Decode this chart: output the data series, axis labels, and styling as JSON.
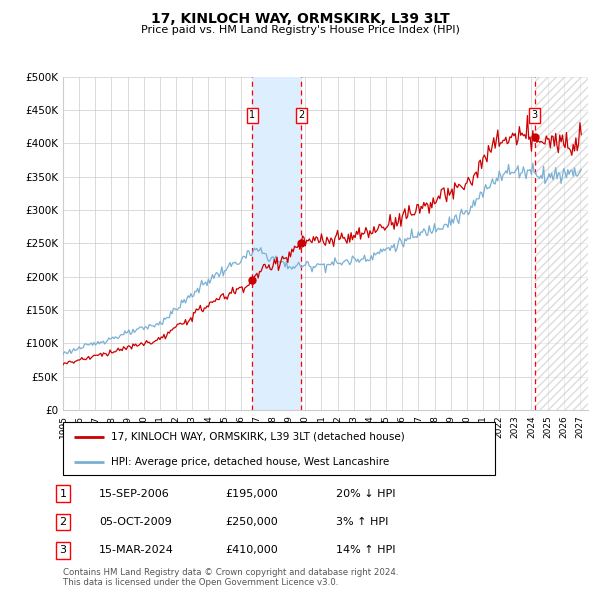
{
  "title": "17, KINLOCH WAY, ORMSKIRK, L39 3LT",
  "subtitle": "Price paid vs. HM Land Registry's House Price Index (HPI)",
  "ylabel_ticks": [
    "£0",
    "£50K",
    "£100K",
    "£150K",
    "£200K",
    "£250K",
    "£300K",
    "£350K",
    "£400K",
    "£450K",
    "£500K"
  ],
  "ytick_values": [
    0,
    50000,
    100000,
    150000,
    200000,
    250000,
    300000,
    350000,
    400000,
    450000,
    500000
  ],
  "xlim_start": 1995.0,
  "xlim_end": 2027.5,
  "ylim": [
    0,
    500000
  ],
  "transactions": [
    {
      "year": 2006.71,
      "price": 195000,
      "label": "1"
    },
    {
      "year": 2009.76,
      "price": 250000,
      "label": "2"
    },
    {
      "year": 2024.21,
      "price": 410000,
      "label": "3"
    }
  ],
  "transaction_dates": [
    "15-SEP-2006",
    "05-OCT-2009",
    "15-MAR-2024"
  ],
  "transaction_prices": [
    "£195,000",
    "£250,000",
    "£410,000"
  ],
  "transaction_hpi": [
    "20% ↓ HPI",
    "3% ↑ HPI",
    "14% ↑ HPI"
  ],
  "legend_line1": "17, KINLOCH WAY, ORMSKIRK, L39 3LT (detached house)",
  "legend_line2": "HPI: Average price, detached house, West Lancashire",
  "footer": "Contains HM Land Registry data © Crown copyright and database right 2024.\nThis data is licensed under the Open Government Licence v3.0.",
  "line_color_property": "#cc0000",
  "line_color_hpi": "#7ab0d4",
  "shade_color": "#ddeeff",
  "hatch_color": "#cccccc",
  "grid_color": "#cccccc",
  "background_color": "#ffffff"
}
